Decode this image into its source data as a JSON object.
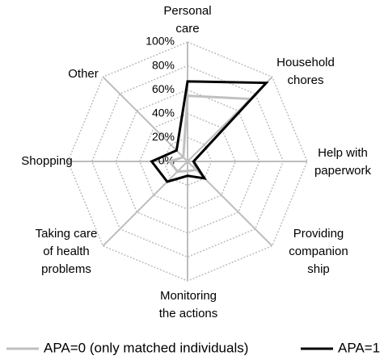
{
  "chart_data": {
    "type": "radar",
    "categories": [
      [
        "Personal",
        "care"
      ],
      [
        "Household",
        "chores"
      ],
      [
        "Help with",
        "paperwork"
      ],
      [
        "Providing",
        "companion",
        "ship"
      ],
      [
        "Monitoring",
        "the actions"
      ],
      [
        "Taking care",
        "of health",
        "problems"
      ],
      [
        "Shopping"
      ],
      [
        "Other"
      ]
    ],
    "series": [
      {
        "name": "APA=0 (only matched individuals)",
        "color": "#c0c0c0",
        "values": [
          55,
          74,
          5,
          10,
          8,
          12,
          15,
          5
        ]
      },
      {
        "name": "APA=1",
        "color": "#000000",
        "values": [
          67,
          93,
          5,
          20,
          12,
          24,
          30,
          13
        ]
      }
    ],
    "rlim": [
      0,
      100
    ],
    "rticks": [
      {
        "value": 0,
        "label": "0%"
      },
      {
        "value": 20,
        "label": "20%"
      },
      {
        "value": 40,
        "label": "40%"
      },
      {
        "value": 60,
        "label": "60%"
      },
      {
        "value": 80,
        "label": "80%"
      },
      {
        "value": 100,
        "label": "100%"
      }
    ],
    "grid": true,
    "legend": "bottom"
  }
}
